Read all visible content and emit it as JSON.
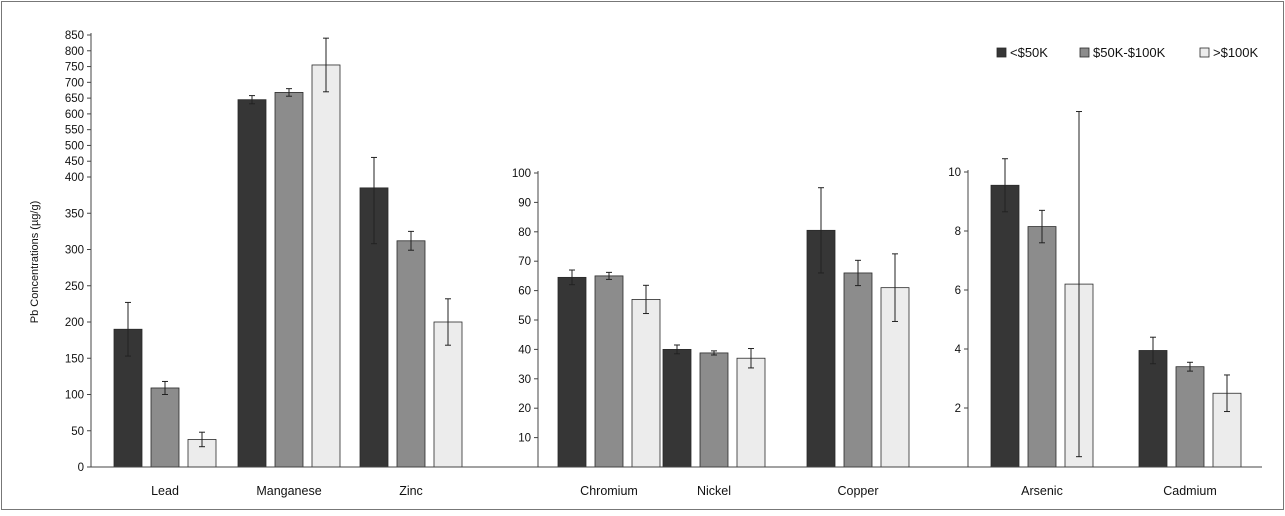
{
  "colors": {
    "low": "#363636",
    "mid": "#8c8c8c",
    "high": "#ececec",
    "axis": "#444444",
    "frame": "#777777"
  },
  "chart_data": {
    "type": "bar",
    "ylabel": "Pb Concentrations (µg/g)",
    "legend_position": "top-right",
    "legend": [
      "<$50K",
      "$50K-$100K",
      ">$100K"
    ],
    "grid": false,
    "panels": [
      {
        "categories": [
          "Lead",
          "Manganese",
          "Zinc"
        ],
        "y_ticks": [
          "0",
          "50",
          "100",
          "150",
          "200",
          "250",
          "300",
          "350",
          "400",
          "450",
          "500",
          "550",
          "600",
          "650",
          "700",
          "750",
          "800",
          "850"
        ],
        "y_scale": "broken: linear 0-400 lower section, compressed 400-850 upper section",
        "series": [
          {
            "name": "<$50K",
            "values": [
              190,
              645,
              385
            ],
            "errors": [
              37,
              13,
              77
            ]
          },
          {
            "name": "$50K-$100K",
            "values": [
              109,
              668,
              312
            ],
            "errors": [
              9,
              12,
              13
            ]
          },
          {
            "name": ">$100K",
            "values": [
              38,
              755,
              200
            ],
            "errors": [
              10,
              85,
              32
            ]
          }
        ]
      },
      {
        "categories": [
          "Chromium",
          "Nickel",
          "Copper"
        ],
        "y_ticks": [
          "10",
          "20",
          "30",
          "40",
          "50",
          "60",
          "70",
          "80",
          "90",
          "100"
        ],
        "ylim": [
          0,
          100
        ],
        "series": [
          {
            "name": "<$50K",
            "values": [
              64.5,
              40,
              80.5
            ],
            "errors": [
              2.5,
              1.5,
              14.5
            ]
          },
          {
            "name": "$50K-$100K",
            "values": [
              65,
              38.8,
              66
            ],
            "errors": [
              1.2,
              0.7,
              4.3
            ]
          },
          {
            "name": ">$100K",
            "values": [
              57,
              37,
              61
            ],
            "errors": [
              4.8,
              3.3,
              11.5
            ]
          }
        ]
      },
      {
        "categories": [
          "Arsenic",
          "Cadmium"
        ],
        "y_ticks": [
          "2",
          "4",
          "6",
          "8",
          "10"
        ],
        "ylim": [
          0,
          11
        ],
        "series": [
          {
            "name": "<$50K",
            "values": [
              9.55,
              3.95
            ],
            "errors": [
              0.9,
              0.45
            ]
          },
          {
            "name": "$50K-$100K",
            "values": [
              8.15,
              3.4
            ],
            "errors": [
              0.55,
              0.15
            ]
          },
          {
            "name": ">$100K",
            "values": [
              6.2,
              2.5
            ],
            "errors": [
              5.85,
              0.62
            ]
          }
        ]
      }
    ]
  }
}
